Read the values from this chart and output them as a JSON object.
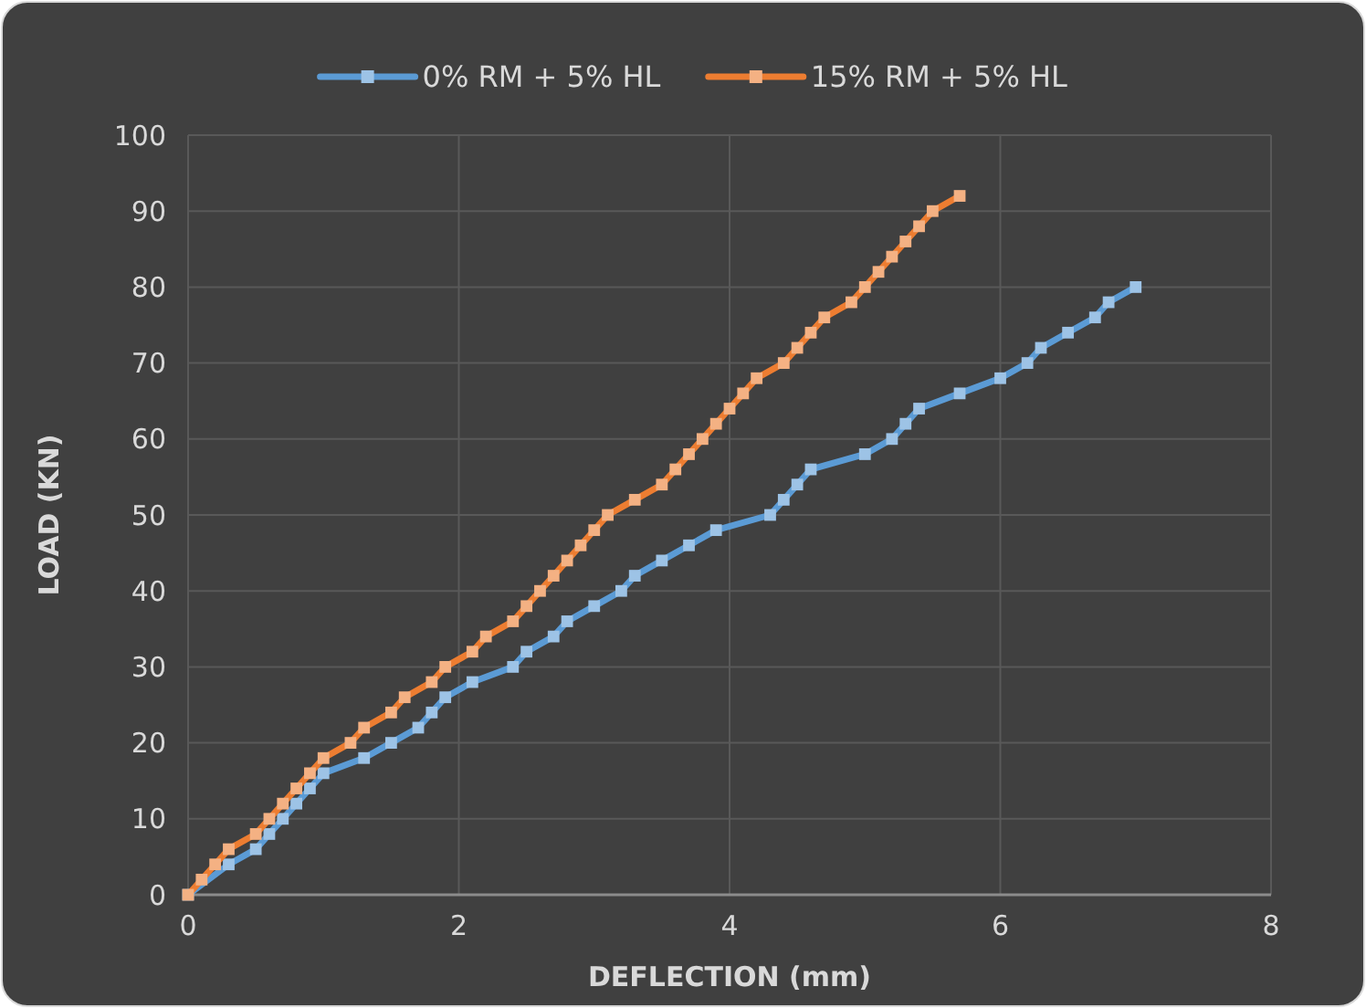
{
  "chart_data": {
    "type": "line",
    "xlabel": "DEFLECTION (mm)",
    "ylabel": "LOAD (KN)",
    "xlim": [
      0,
      8
    ],
    "xticks": [
      0,
      2,
      4,
      6,
      8
    ],
    "ylim": [
      0,
      100
    ],
    "yticks": [
      0,
      10,
      20,
      30,
      40,
      50,
      60,
      70,
      80,
      90,
      100
    ],
    "grid": true,
    "legend": "top",
    "marker": "square",
    "line_style": "solid",
    "series": [
      {
        "name": "0% RM + 5% HL",
        "color": "#5b9bd5",
        "x": [
          0,
          0.3,
          0.5,
          0.6,
          0.7,
          0.8,
          0.9,
          1.0,
          1.3,
          1.5,
          1.7,
          1.8,
          1.9,
          2.1,
          2.4,
          2.5,
          2.7,
          2.8,
          3.0,
          3.2,
          3.3,
          3.5,
          3.7,
          3.9,
          4.3,
          4.4,
          4.5,
          4.6,
          5.0,
          5.2,
          5.3,
          5.4,
          5.7,
          6.0,
          6.2,
          6.3,
          6.5,
          6.7,
          6.8,
          7.0
        ],
        "values": [
          0,
          4,
          6,
          8,
          10,
          12,
          14,
          16,
          18,
          20,
          22,
          24,
          26,
          28,
          30,
          32,
          34,
          36,
          38,
          40,
          42,
          44,
          46,
          48,
          50,
          52,
          54,
          56,
          58,
          60,
          62,
          64,
          66,
          68,
          70,
          72,
          74,
          76,
          78,
          80
        ]
      },
      {
        "name": "15% RM + 5% HL",
        "color": "#ed7d31",
        "x": [
          0,
          0.1,
          0.2,
          0.3,
          0.5,
          0.6,
          0.7,
          0.8,
          0.9,
          1.0,
          1.2,
          1.3,
          1.5,
          1.6,
          1.8,
          1.9,
          2.1,
          2.2,
          2.4,
          2.5,
          2.6,
          2.7,
          2.8,
          2.9,
          3.0,
          3.1,
          3.3,
          3.5,
          3.6,
          3.7,
          3.8,
          3.9,
          4.0,
          4.1,
          4.2,
          4.4,
          4.5,
          4.6,
          4.7,
          4.9,
          5.0,
          5.1,
          5.2,
          5.3,
          5.4,
          5.5,
          5.7
        ],
        "values": [
          0,
          2,
          4,
          6,
          8,
          10,
          12,
          14,
          16,
          18,
          20,
          22,
          24,
          26,
          28,
          30,
          32,
          34,
          36,
          38,
          40,
          42,
          44,
          46,
          48,
          50,
          52,
          54,
          56,
          58,
          60,
          62,
          64,
          66,
          68,
          70,
          72,
          74,
          76,
          78,
          80,
          82,
          84,
          86,
          88,
          90,
          92
        ]
      }
    ]
  }
}
